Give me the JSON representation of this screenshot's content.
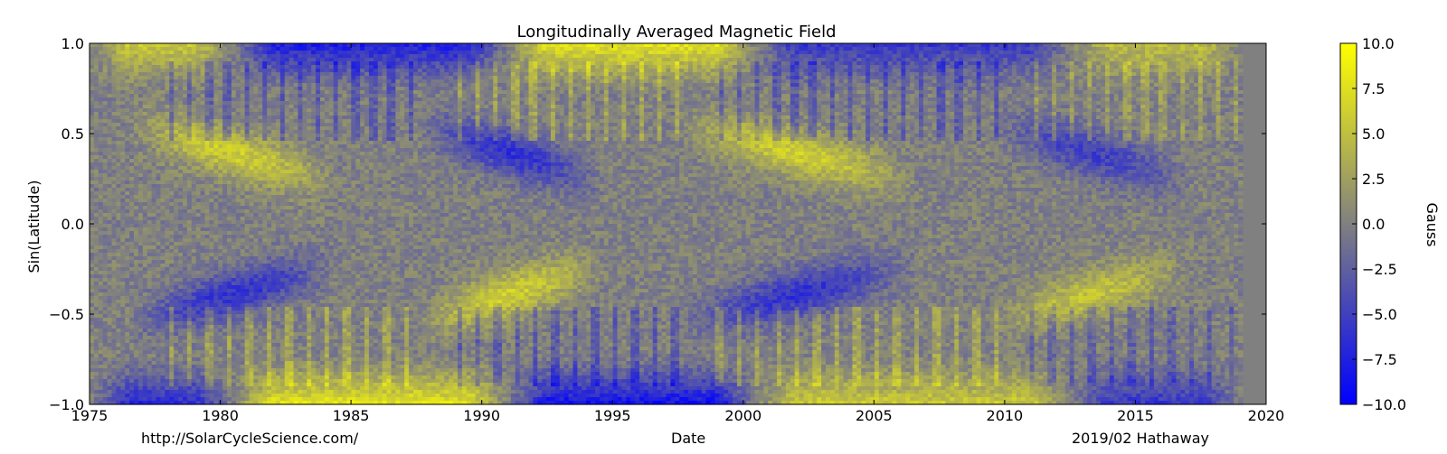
{
  "chart_data": {
    "type": "heatmap",
    "title": "Longitudinally Averaged Magnetic Field",
    "xlabel": "Date",
    "ylabel": "Sin(Latitude)",
    "xlim": [
      1975,
      2020
    ],
    "ylim": [
      -1.0,
      1.0
    ],
    "x_ticks": [
      "1975",
      "1980",
      "1985",
      "1990",
      "1995",
      "2000",
      "2005",
      "2010",
      "2015",
      "2020"
    ],
    "y_ticks": [
      "1.0",
      "0.5",
      "0.0",
      "−0.5",
      "−1.0"
    ],
    "colorbar": {
      "label": "Gauss",
      "range": [
        -10.0,
        10.0
      ],
      "ticks": [
        "10.0",
        "7.5",
        "5.0",
        "2.5",
        "0.0",
        "−2.5",
        "−5.0",
        "−7.5",
        "−10.0"
      ],
      "colors": [
        "#0000ff",
        "#808080",
        "#ffff00"
      ]
    },
    "data_end": 2019.1,
    "no_data_color": "#808080",
    "features": {
      "active_bands": [
        {
          "cycle_start": 1976.5,
          "cycle_end": 1986.5,
          "north_gauss": 6,
          "south_gauss": -6
        },
        {
          "cycle_start": 1987.5,
          "cycle_end": 1996.5,
          "north_gauss": -6,
          "south_gauss": 6
        },
        {
          "cycle_start": 1997.5,
          "cycle_end": 2009.0,
          "north_gauss": 6,
          "south_gauss": -6
        },
        {
          "cycle_start": 2009.5,
          "cycle_end": 2019.1,
          "north_gauss": -5,
          "south_gauss": 5
        }
      ],
      "polar_fields": [
        {
          "start": 1975.0,
          "end": 1980.5,
          "north_gauss": 6,
          "south_gauss": -7
        },
        {
          "start": 1980.5,
          "end": 1991.0,
          "north_gauss": -8,
          "south_gauss": 8
        },
        {
          "start": 1991.0,
          "end": 2000.5,
          "north_gauss": 8,
          "south_gauss": -9
        },
        {
          "start": 2000.5,
          "end": 2012.5,
          "north_gauss": -6,
          "south_gauss": 6
        },
        {
          "start": 2012.5,
          "end": 2019.1,
          "north_gauss": 5,
          "south_gauss": -6
        }
      ]
    }
  },
  "footer": {
    "left": "http://SolarCycleScience.com/",
    "center": "Date",
    "right": "2019/02 Hathaway"
  }
}
